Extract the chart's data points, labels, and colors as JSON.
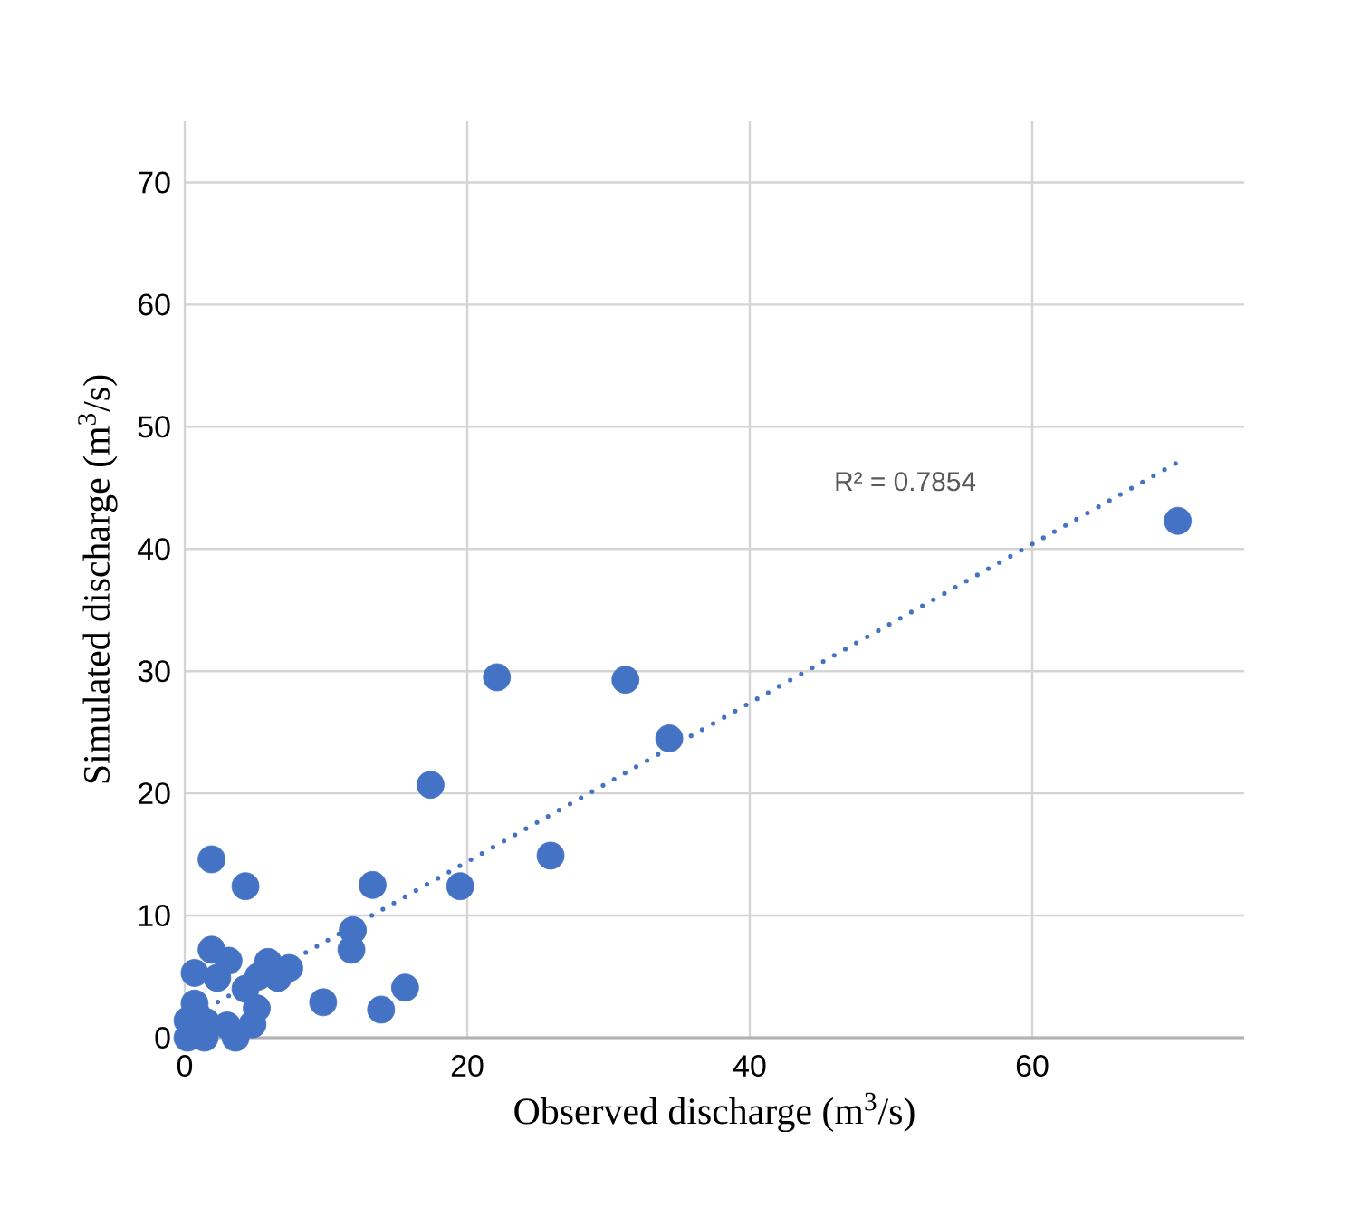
{
  "chart_data": {
    "type": "scatter",
    "xlabel": "Observed discharge (m$^{3}$/s)",
    "ylabel": "Simulated discharge (m$^{3}$/s)",
    "xlim": [
      0,
      75
    ],
    "ylim": [
      0,
      75
    ],
    "xticks": [
      0,
      20,
      40,
      60
    ],
    "yticks": [
      0,
      10,
      20,
      30,
      40,
      50,
      60,
      70
    ],
    "grid": true,
    "annotations": [
      "R² = 0.7854"
    ],
    "series": [
      {
        "color": "#4472c4",
        "marker": "circle",
        "x": [
          70.3,
          22.1,
          31.2,
          34.3,
          17.4,
          25.9,
          19.5,
          13.3,
          1.9,
          4.3,
          11.9,
          11.8,
          15.6,
          13.9,
          9.8,
          1.9,
          7.4,
          6.6,
          5.9,
          5.2,
          0.7,
          3.1,
          4.8,
          3.6,
          0.2,
          1.4,
          0.7,
          1.5,
          2.3,
          3.0,
          4.3,
          5.1,
          0.2
        ],
        "values": [
          42.3,
          29.5,
          29.3,
          24.5,
          20.7,
          14.9,
          12.4,
          12.5,
          14.6,
          12.4,
          8.8,
          7.2,
          4.1,
          2.3,
          2.9,
          7.2,
          5.7,
          4.9,
          6.2,
          5.0,
          5.3,
          6.3,
          1.1,
          0.0,
          0.0,
          0.0,
          2.8,
          1.3,
          4.9,
          1.0,
          4.0,
          2.4,
          1.4
        ]
      },
      {
        "type": "line",
        "color": "#4472c4",
        "line_style": "dotted",
        "marker": "none",
        "x": [
          0,
          70.3
        ],
        "values": [
          1.4,
          47.1
        ]
      }
    ]
  }
}
